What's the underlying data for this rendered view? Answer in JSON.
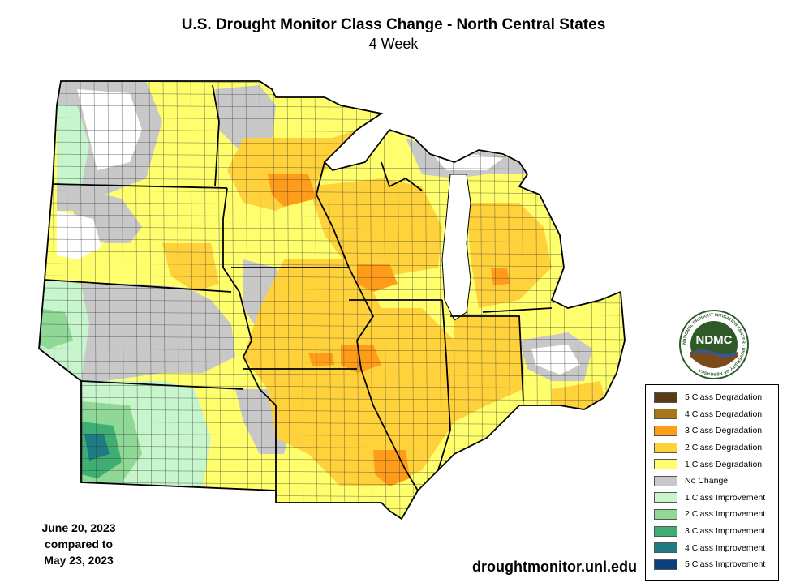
{
  "title": "U.S. Drought Monitor Class Change - North Central States",
  "subtitle": "4 Week",
  "dates": {
    "line1": "June 20, 2023",
    "line2": "compared to",
    "line3": "May 23, 2023"
  },
  "source_url": "droughtmonitor.unl.edu",
  "logo": {
    "text": "NDMC",
    "ring_text": "NATIONAL DROUGHT MITIGATION CENTER · UNIVERSITY OF NEBRASKA"
  },
  "legend": [
    {
      "label": "5 Class Degradation",
      "color": "#5a3a12"
    },
    {
      "label": "4 Class Degradation",
      "color": "#a6761d"
    },
    {
      "label": "3 Class Degradation",
      "color": "#ff9c1a"
    },
    {
      "label": "2 Class Degradation",
      "color": "#ffd23c"
    },
    {
      "label": "1 Class Degradation",
      "color": "#ffff6e"
    },
    {
      "label": "No Change",
      "color": "#c8c8c8"
    },
    {
      "label": "1 Class Improvement",
      "color": "#c7f5cc"
    },
    {
      "label": "2 Class Improvement",
      "color": "#8fd895"
    },
    {
      "label": "3 Class Improvement",
      "color": "#3fae73"
    },
    {
      "label": "4 Class Improvement",
      "color": "#1f7a82"
    },
    {
      "label": "5 Class Improvement",
      "color": "#0b3f7a"
    }
  ],
  "colors": {
    "background": "#ffffff",
    "state_border": "#000000",
    "county_line": "#333333",
    "lake": "#ffffff",
    "logo_green": "#2e5a2a",
    "logo_brown": "#7a4a1a",
    "logo_blue": "#2a5aa0"
  }
}
